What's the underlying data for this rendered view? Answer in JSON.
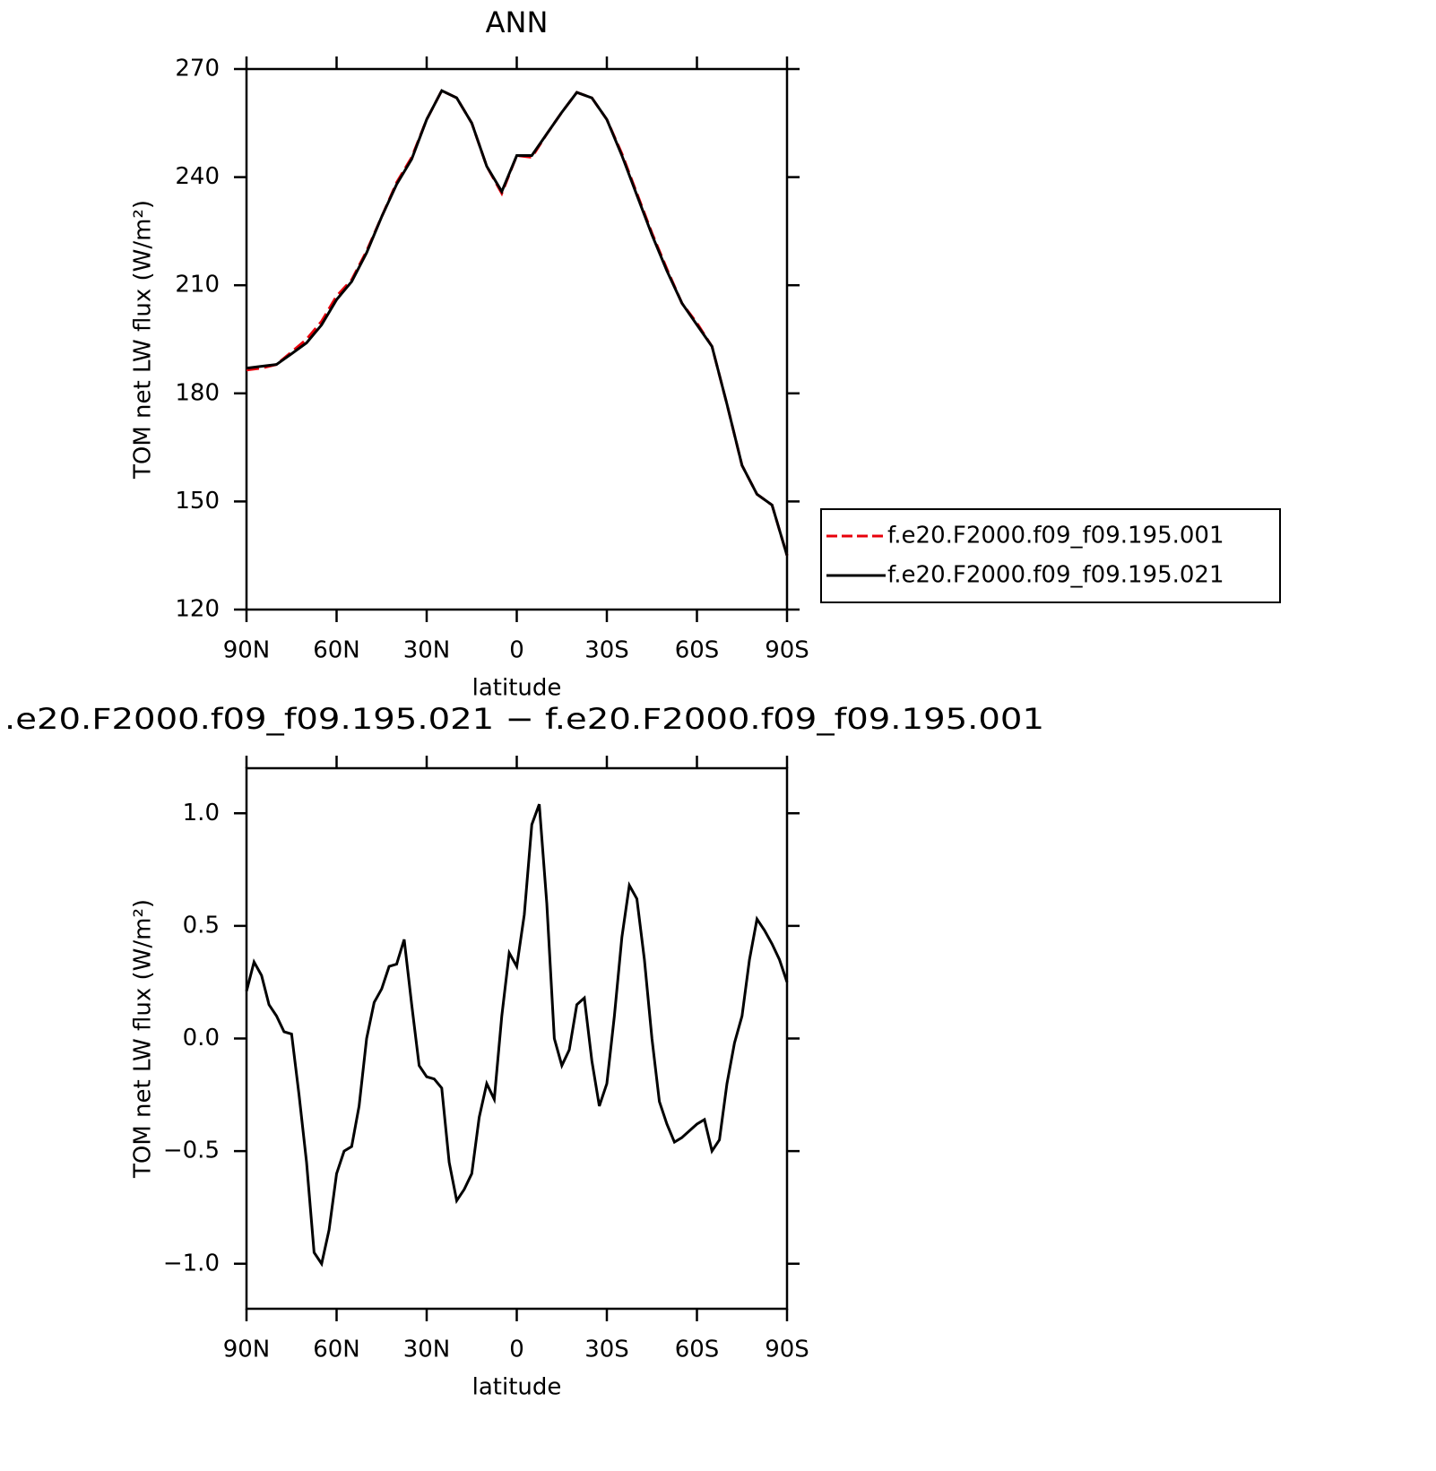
{
  "chart_data": [
    {
      "type": "line",
      "title": "ANN",
      "xlabel": "latitude",
      "ylabel": "TOM net LW flux (W/m²)",
      "x": [
        90,
        85,
        80,
        75,
        70,
        65,
        60,
        55,
        50,
        45,
        40,
        35,
        30,
        25,
        20,
        15,
        10,
        5,
        0,
        -5,
        -10,
        -15,
        -20,
        -25,
        -30,
        -35,
        -40,
        -45,
        -50,
        -55,
        -60,
        -65,
        -70,
        -75,
        -80,
        -85,
        -90
      ],
      "series": [
        {
          "name": "f.e20.F2000.f09_f09.195.001",
          "color": "#e8000b",
          "dash": true,
          "values": [
            186.5,
            187,
            188,
            191.5,
            195,
            200,
            207,
            211.5,
            219.5,
            229,
            238.5,
            245.5,
            256,
            264,
            262,
            255,
            243,
            235.5,
            246,
            245.5,
            252,
            258,
            263.5,
            262,
            256,
            246.5,
            235.5,
            224.5,
            214.5,
            205,
            199.5,
            193,
            177,
            160,
            152,
            149,
            135
          ]
        },
        {
          "name": "f.e20.F2000.f09_f09.195.021",
          "color": "#000000",
          "dash": false,
          "values": [
            187,
            187.5,
            188,
            191,
            194,
            199,
            206,
            211,
            219,
            229,
            238,
            245,
            256,
            264,
            262,
            255,
            243,
            236,
            246,
            246,
            252,
            258,
            263.5,
            262,
            256,
            246,
            235,
            224,
            214,
            205,
            199,
            193,
            177,
            160,
            152,
            149,
            135
          ]
        }
      ],
      "xlim": [
        90,
        -90
      ],
      "xticks": [
        {
          "value": 90,
          "label": "90N"
        },
        {
          "value": 60,
          "label": "60N"
        },
        {
          "value": 30,
          "label": "30N"
        },
        0,
        {
          "value": -30,
          "label": "30S"
        },
        {
          "value": -60,
          "label": "60S"
        },
        {
          "value": -90,
          "label": "90S"
        }
      ],
      "ylim": [
        120,
        270
      ],
      "yticks": [
        120,
        150,
        180,
        210,
        240,
        270
      ],
      "grid": false,
      "legend": "right"
    },
    {
      "type": "line",
      "title": ".e20.F2000.f09_f09.195.021 − f.e20.F2000.f09_f09.195.001",
      "xlabel": "latitude",
      "ylabel": "TOM net LW flux (W/m²)",
      "x": [
        90,
        87.5,
        85,
        82.5,
        80,
        77.5,
        75,
        72.5,
        70,
        67.5,
        65,
        62.5,
        60,
        57.5,
        55,
        52.5,
        50,
        47.5,
        45,
        42.5,
        40,
        37.5,
        35,
        32.5,
        30,
        27.5,
        25,
        22.5,
        20,
        17.5,
        15,
        12.5,
        10,
        7.5,
        5,
        2.5,
        0,
        -2.5,
        -5,
        -7.5,
        -10,
        -12.5,
        -15,
        -17.5,
        -20,
        -22.5,
        -25,
        -27.5,
        -30,
        -32.5,
        -35,
        -37.5,
        -40,
        -42.5,
        -45,
        -47.5,
        -50,
        -52.5,
        -55,
        -57.5,
        -60,
        -62.5,
        -65,
        -67.5,
        -70,
        -72.5,
        -75,
        -77.5,
        -80,
        -82.5,
        -85,
        -87.5,
        -90
      ],
      "values": [
        0.21,
        0.34,
        0.28,
        0.15,
        0.1,
        0.03,
        0.02,
        -0.25,
        -0.55,
        -0.95,
        -1.0,
        -0.85,
        -0.6,
        -0.5,
        -0.48,
        -0.3,
        0.0,
        0.16,
        0.22,
        0.32,
        0.33,
        0.44,
        0.15,
        -0.12,
        -0.17,
        -0.18,
        -0.22,
        -0.55,
        -0.72,
        -0.67,
        -0.6,
        -0.35,
        -0.2,
        -0.27,
        0.1,
        0.38,
        0.32,
        0.55,
        0.95,
        1.04,
        0.6,
        0.0,
        -0.12,
        -0.05,
        0.15,
        0.18,
        -0.1,
        -0.3,
        -0.2,
        0.1,
        0.45,
        0.68,
        0.62,
        0.35,
        0.0,
        -0.28,
        -0.38,
        -0.46,
        -0.44,
        -0.41,
        -0.38,
        -0.36,
        -0.5,
        -0.45,
        -0.2,
        -0.02,
        0.1,
        0.35,
        0.53,
        0.48,
        0.42,
        0.35,
        0.25
      ],
      "color": "#000000",
      "xlim": [
        90,
        -90
      ],
      "xticks": [
        {
          "value": 90,
          "label": "90N"
        },
        {
          "value": 60,
          "label": "60N"
        },
        {
          "value": 30,
          "label": "30N"
        },
        0,
        {
          "value": -30,
          "label": "30S"
        },
        {
          "value": -60,
          "label": "60S"
        },
        {
          "value": -90,
          "label": "90S"
        }
      ],
      "ylim": [
        -1.2,
        1.2
      ],
      "yticks": [
        {
          "value": -1.0,
          "label": "−1.0"
        },
        {
          "value": -0.5,
          "label": "−0.5"
        },
        {
          "value": 0.0,
          "label": "0.0"
        },
        0.5,
        {
          "value": 1.0,
          "label": "1.0"
        }
      ],
      "grid": false
    }
  ]
}
